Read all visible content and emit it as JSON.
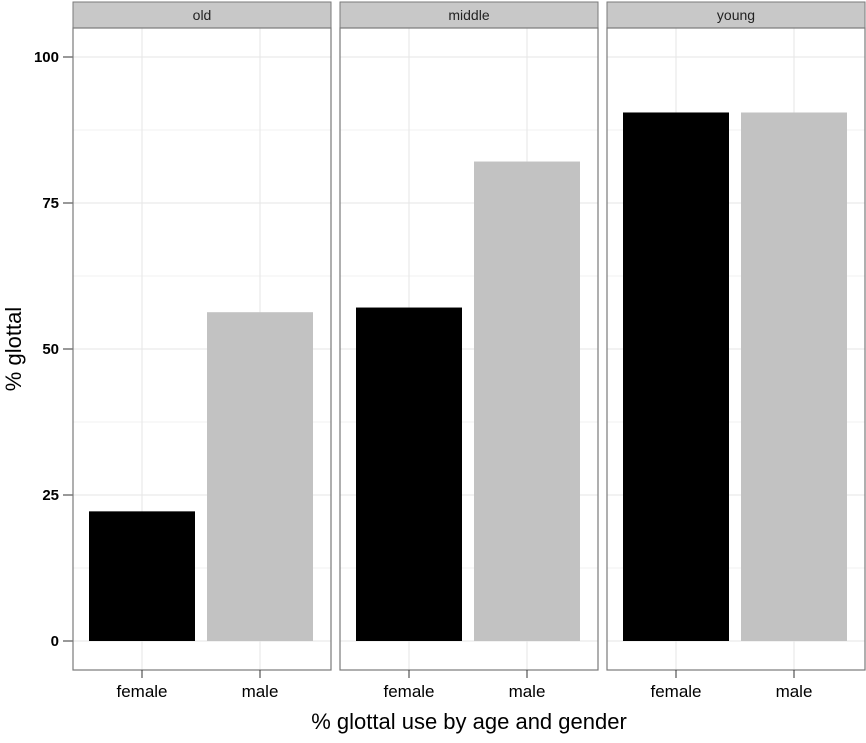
{
  "chart_data": {
    "type": "bar",
    "ylabel": "% glottal",
    "xlabel": "% glottal use by age and gender",
    "ylim": [
      0,
      105
    ],
    "yticks": [
      0,
      25,
      50,
      75,
      100
    ],
    "grid": true,
    "categories": [
      "female",
      "male"
    ],
    "colors": {
      "female": "#000000",
      "male": "#c2c2c2",
      "strip_fill": "#c8c8c8",
      "gridline": "#e6e6e6",
      "panel_border": "#7a7a7a"
    },
    "panels": [
      {
        "label": "old",
        "values": [
          22.2,
          56.3
        ]
      },
      {
        "label": "middle",
        "values": [
          57.1,
          82.1
        ]
      },
      {
        "label": "young",
        "values": [
          90.5,
          90.5
        ]
      }
    ]
  }
}
